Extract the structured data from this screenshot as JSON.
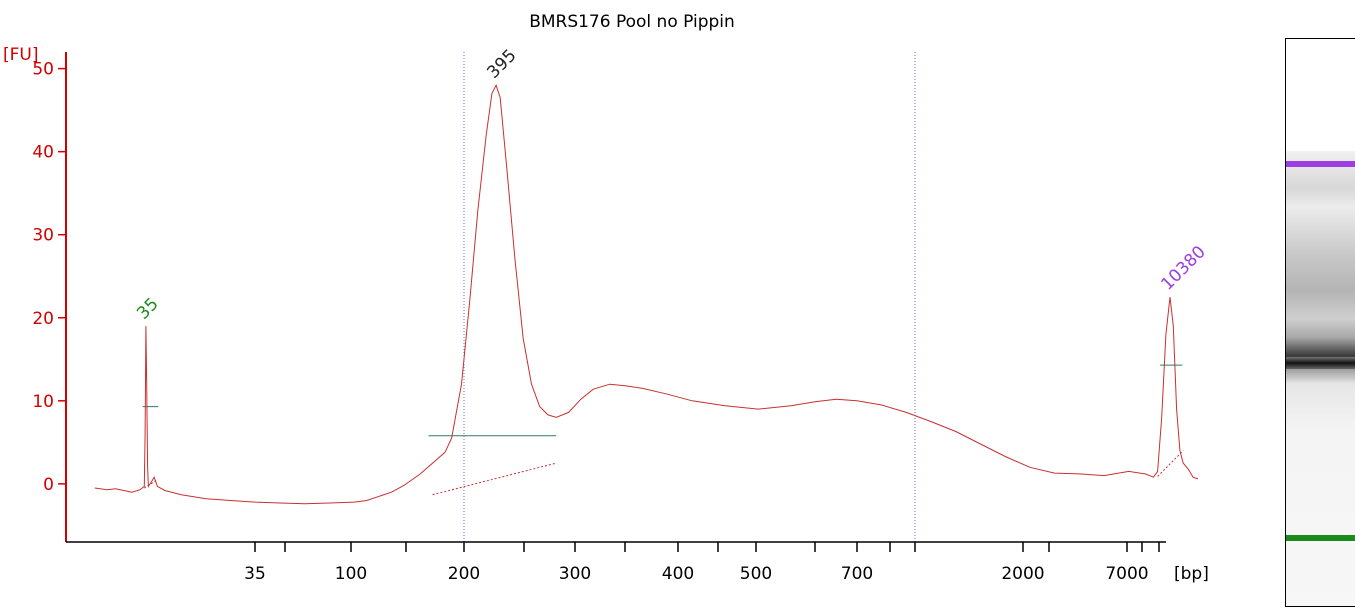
{
  "chart_data": {
    "type": "line",
    "title": "BMRS176 Pool no Pippin",
    "ylabel": "[FU]",
    "xlabel": "[bp]",
    "ylim": [
      -7,
      52
    ],
    "yticks": [
      0,
      10,
      20,
      30,
      40,
      50
    ],
    "x_tick_labels": [
      "35",
      "100",
      "200",
      "300",
      "400",
      "500",
      "700",
      "2000",
      "7000"
    ],
    "ladder_ticks": [
      "35",
      "",
      "100",
      "",
      "200",
      "",
      "300",
      "",
      "400",
      "",
      "500",
      "",
      "700",
      "",
      "",
      "2000",
      "",
      "7000",
      "",
      "10380"
    ],
    "gridlines_at": [
      "200",
      "1000"
    ],
    "peaks": [
      {
        "label": "35",
        "size_bp": 35,
        "height": 19,
        "color": "#1a8a1a"
      },
      {
        "label": "395",
        "size_bp": 395,
        "height": 48,
        "color": "#222222"
      },
      {
        "label": "10380",
        "size_bp": 10380,
        "height": 22.5,
        "color": "#9b3fe0"
      }
    ],
    "trace": [
      [
        35,
        -0.5
      ],
      [
        50,
        -0.7
      ],
      [
        60,
        -0.6
      ],
      [
        70,
        -0.8
      ],
      [
        80,
        -1.0
      ],
      [
        90,
        -0.7
      ],
      [
        95,
        -0.3
      ],
      [
        96,
        6
      ],
      [
        97,
        19
      ],
      [
        98,
        12
      ],
      [
        99,
        2
      ],
      [
        100,
        -0.3
      ],
      [
        104,
        0.3
      ],
      [
        107,
        0.8
      ],
      [
        111,
        -0.3
      ],
      [
        120,
        -0.8
      ],
      [
        140,
        -1.3
      ],
      [
        170,
        -1.8
      ],
      [
        200,
        -2.0
      ],
      [
        230,
        -2.2
      ],
      [
        260,
        -2.3
      ],
      [
        290,
        -2.4
      ],
      [
        320,
        -2.3
      ],
      [
        350,
        -2.2
      ],
      [
        365,
        -2.0
      ],
      [
        380,
        -1.5
      ],
      [
        395,
        -1.0
      ],
      [
        410,
        -0.2
      ],
      [
        430,
        1.2
      ],
      [
        445,
        2.5
      ],
      [
        460,
        3.8
      ],
      [
        468,
        5.5
      ],
      [
        480,
        12
      ],
      [
        490,
        22
      ],
      [
        500,
        33
      ],
      [
        510,
        42
      ],
      [
        517,
        47
      ],
      [
        522,
        48
      ],
      [
        527,
        46.5
      ],
      [
        535,
        38
      ],
      [
        545,
        27
      ],
      [
        555,
        17.5
      ],
      [
        565,
        12
      ],
      [
        575,
        9.3
      ],
      [
        585,
        8.3
      ],
      [
        595,
        8.0
      ],
      [
        610,
        8.6
      ],
      [
        625,
        10.2
      ],
      [
        640,
        11.4
      ],
      [
        660,
        12.0
      ],
      [
        680,
        11.8
      ],
      [
        700,
        11.5
      ],
      [
        730,
        10.8
      ],
      [
        760,
        10.0
      ],
      [
        800,
        9.4
      ],
      [
        840,
        9.0
      ],
      [
        880,
        9.4
      ],
      [
        910,
        9.9
      ],
      [
        935,
        10.2
      ],
      [
        960,
        10.0
      ],
      [
        990,
        9.5
      ],
      [
        1020,
        8.6
      ],
      [
        1050,
        7.5
      ],
      [
        1080,
        6.3
      ],
      [
        1110,
        4.8
      ],
      [
        1140,
        3.3
      ],
      [
        1170,
        2.0
      ],
      [
        1200,
        1.3
      ],
      [
        1230,
        1.2
      ],
      [
        1260,
        1.0
      ],
      [
        1290,
        1.5
      ],
      [
        1310,
        1.2
      ],
      [
        1320,
        0.8
      ],
      [
        1325,
        1.5
      ],
      [
        1330,
        8
      ],
      [
        1335,
        18
      ],
      [
        1340,
        22.5
      ],
      [
        1344,
        19
      ],
      [
        1348,
        9
      ],
      [
        1352,
        4
      ],
      [
        1356,
        2.5
      ],
      [
        1362,
        1.8
      ],
      [
        1368,
        0.8
      ],
      [
        1374,
        0.6
      ]
    ],
    "baselines": [
      {
        "x1": 95,
        "y1": -0.5,
        "x2": 111,
        "y2": 0.5
      },
      {
        "x1": 445,
        "y1": -1.3,
        "x2": 595,
        "y2": 2.5
      },
      {
        "x1": 1325,
        "y1": 0.9,
        "x2": 1356,
        "y2": 4.0
      }
    ],
    "half_height_lines": [
      {
        "x1": 93,
        "x2": 112,
        "y": 9.3
      },
      {
        "x1": 440,
        "x2": 595,
        "y": 5.8
      },
      {
        "x1": 1328,
        "x2": 1355,
        "y": 14.3
      }
    ],
    "grid": false,
    "legend": "none"
  },
  "gel": {
    "colors": {
      "upper_marker": "#9b3fe0",
      "lower_marker": "#1a8a1a",
      "main_band": "#111111"
    }
  },
  "colors": {
    "axis": "#d40000",
    "trace": "#c83030",
    "grid": "#6a6ad8",
    "fit": "#2a7a6a"
  }
}
